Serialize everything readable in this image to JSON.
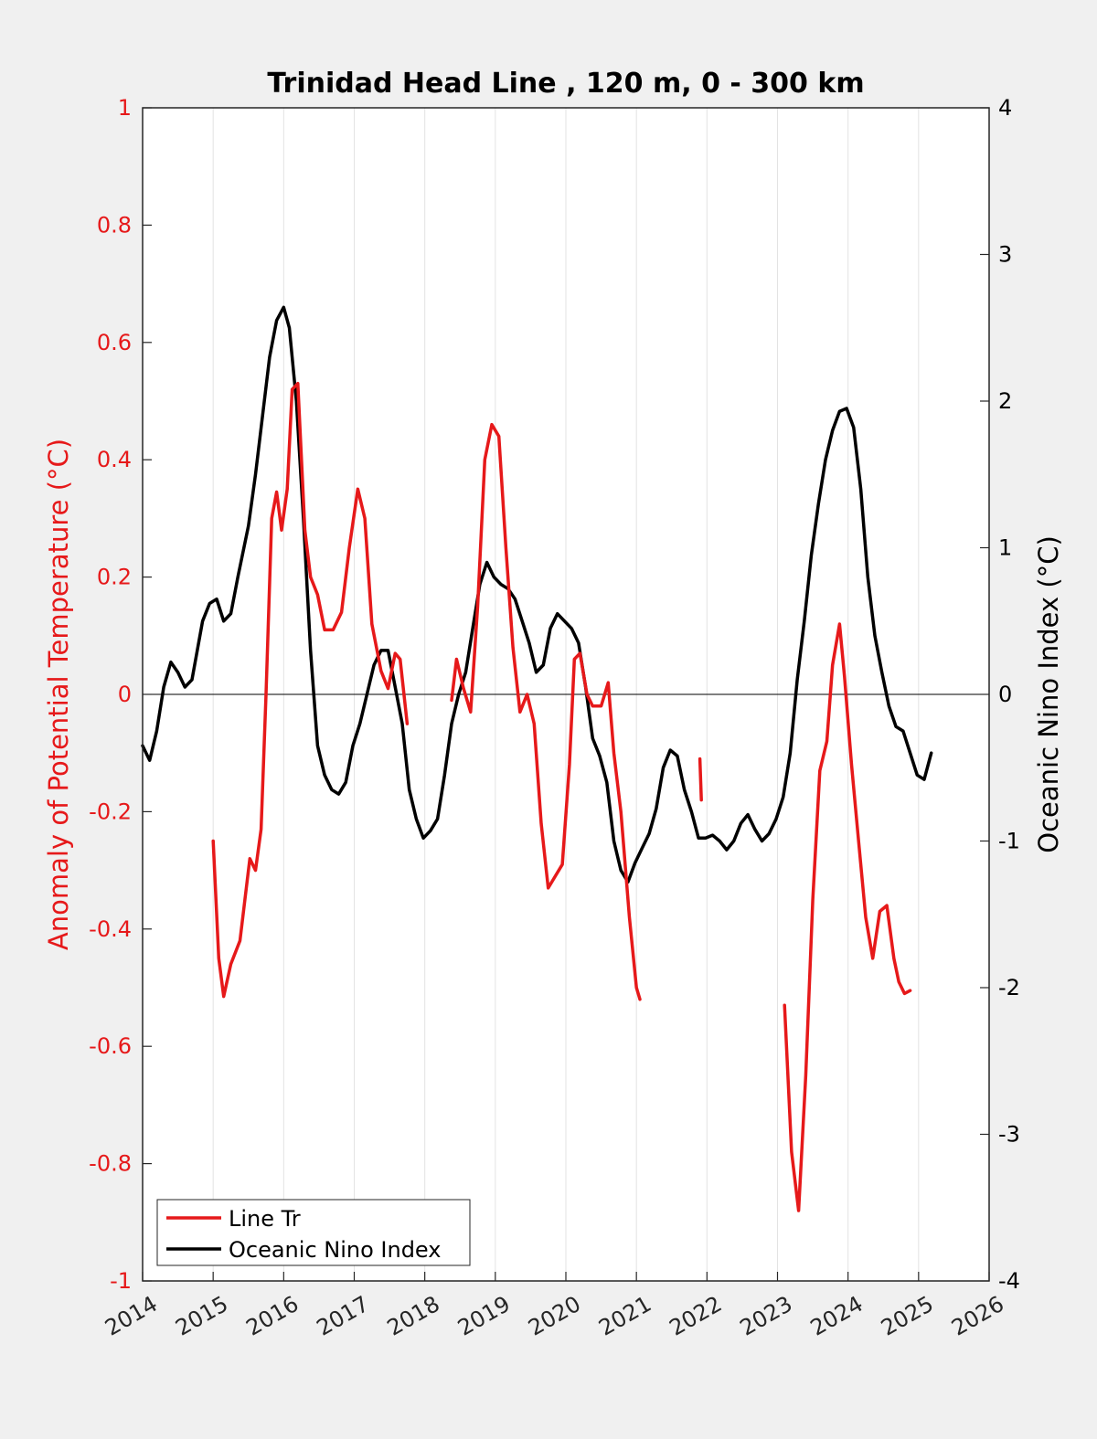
{
  "chart_data": {
    "type": "line",
    "title": "Trinidad Head Line , 120 m, 0 - 300 km",
    "xlim": [
      2014,
      2026
    ],
    "x_ticks": [
      "2014",
      "2015",
      "2016",
      "2017",
      "2018",
      "2019",
      "2020",
      "2021",
      "2022",
      "2023",
      "2024",
      "2025",
      "2026"
    ],
    "y_left": {
      "label": "Anomaly of Potential Temperature (°C)",
      "range": [
        -1,
        1
      ],
      "ticks": [
        "1",
        "0.8",
        "0.6",
        "0.4",
        "0.2",
        "0",
        "-0.2",
        "-0.4",
        "-0.6",
        "-0.8",
        "-1"
      ],
      "color": "#e6191a"
    },
    "y_right": {
      "label": "Oceanic Nino Index (°C)",
      "range": [
        -4,
        4
      ],
      "ticks": [
        "4",
        "3",
        "2",
        "1",
        "0",
        "-1",
        "-2",
        "-3",
        "-4"
      ],
      "color": "#000000"
    },
    "grid": "vertical",
    "zero_line": true,
    "legend": {
      "placement": "bottom-left",
      "entries": [
        "Line Tr",
        "Oceanic Nino Index"
      ]
    },
    "series": [
      {
        "name": "Line Tr",
        "axis": "left",
        "color": "#e6191a",
        "segments": [
          [
            [
              2015.0,
              -0.25
            ],
            [
              2015.08,
              -0.45
            ],
            [
              2015.15,
              -0.515
            ],
            [
              2015.25,
              -0.46
            ],
            [
              2015.38,
              -0.42
            ],
            [
              2015.45,
              -0.35
            ],
            [
              2015.52,
              -0.28
            ],
            [
              2015.6,
              -0.3
            ],
            [
              2015.68,
              -0.23
            ],
            [
              2015.75,
              0.0
            ],
            [
              2015.83,
              0.3
            ],
            [
              2015.9,
              0.345
            ],
            [
              2015.97,
              0.28
            ],
            [
              2016.05,
              0.35
            ],
            [
              2016.12,
              0.52
            ],
            [
              2016.2,
              0.53
            ],
            [
              2016.3,
              0.28
            ],
            [
              2016.38,
              0.2
            ],
            [
              2016.48,
              0.17
            ],
            [
              2016.58,
              0.11
            ],
            [
              2016.7,
              0.11
            ],
            [
              2016.82,
              0.14
            ],
            [
              2016.93,
              0.25
            ],
            [
              2017.05,
              0.35
            ],
            [
              2017.15,
              0.3
            ],
            [
              2017.25,
              0.12
            ],
            [
              2017.38,
              0.04
            ],
            [
              2017.48,
              0.01
            ],
            [
              2017.58,
              0.07
            ],
            [
              2017.65,
              0.06
            ],
            [
              2017.75,
              -0.05
            ]
          ],
          [
            [
              2018.38,
              -0.01
            ],
            [
              2018.45,
              0.06
            ],
            [
              2018.55,
              0.01
            ],
            [
              2018.65,
              -0.03
            ],
            [
              2018.75,
              0.15
            ],
            [
              2018.85,
              0.4
            ],
            [
              2018.95,
              0.46
            ],
            [
              2019.05,
              0.44
            ],
            [
              2019.15,
              0.25
            ],
            [
              2019.25,
              0.08
            ],
            [
              2019.35,
              -0.03
            ],
            [
              2019.45,
              0.0
            ],
            [
              2019.55,
              -0.05
            ],
            [
              2019.65,
              -0.22
            ],
            [
              2019.75,
              -0.33
            ],
            [
              2019.85,
              -0.31
            ],
            [
              2019.95,
              -0.29
            ],
            [
              2020.05,
              -0.12
            ],
            [
              2020.12,
              0.06
            ],
            [
              2020.2,
              0.07
            ],
            [
              2020.3,
              0.0
            ],
            [
              2020.38,
              -0.02
            ],
            [
              2020.5,
              -0.02
            ],
            [
              2020.6,
              0.02
            ],
            [
              2020.68,
              -0.1
            ],
            [
              2020.78,
              -0.2
            ],
            [
              2020.9,
              -0.38
            ],
            [
              2021.0,
              -0.5
            ],
            [
              2021.05,
              -0.52
            ]
          ],
          [
            [
              2021.9,
              -0.11
            ],
            [
              2021.92,
              -0.18
            ]
          ],
          [
            [
              2023.1,
              -0.53
            ],
            [
              2023.2,
              -0.78
            ],
            [
              2023.3,
              -0.88
            ],
            [
              2023.4,
              -0.65
            ],
            [
              2023.5,
              -0.35
            ],
            [
              2023.6,
              -0.13
            ],
            [
              2023.7,
              -0.08
            ],
            [
              2023.78,
              0.05
            ],
            [
              2023.88,
              0.12
            ],
            [
              2023.95,
              0.03
            ],
            [
              2024.05,
              -0.12
            ],
            [
              2024.15,
              -0.25
            ],
            [
              2024.25,
              -0.38
            ],
            [
              2024.35,
              -0.45
            ],
            [
              2024.45,
              -0.37
            ],
            [
              2024.55,
              -0.36
            ],
            [
              2024.65,
              -0.45
            ],
            [
              2024.72,
              -0.49
            ],
            [
              2024.8,
              -0.51
            ],
            [
              2024.88,
              -0.505
            ]
          ]
        ]
      },
      {
        "name": "Oceanic Nino Index",
        "axis": "right",
        "color": "#000000",
        "segments": [
          [
            [
              2014.0,
              -0.35
            ],
            [
              2014.1,
              -0.45
            ],
            [
              2014.2,
              -0.25
            ],
            [
              2014.3,
              0.05
            ],
            [
              2014.4,
              0.22
            ],
            [
              2014.5,
              0.15
            ],
            [
              2014.6,
              0.05
            ],
            [
              2014.7,
              0.1
            ],
            [
              2014.85,
              0.5
            ],
            [
              2014.95,
              0.62
            ],
            [
              2015.05,
              0.65
            ],
            [
              2015.15,
              0.5
            ],
            [
              2015.25,
              0.55
            ],
            [
              2015.35,
              0.8
            ],
            [
              2015.5,
              1.15
            ],
            [
              2015.6,
              1.5
            ],
            [
              2015.7,
              1.9
            ],
            [
              2015.8,
              2.3
            ],
            [
              2015.9,
              2.55
            ],
            [
              2016.0,
              2.64
            ],
            [
              2016.08,
              2.5
            ],
            [
              2016.18,
              2.0
            ],
            [
              2016.28,
              1.2
            ],
            [
              2016.38,
              0.3
            ],
            [
              2016.48,
              -0.35
            ],
            [
              2016.58,
              -0.55
            ],
            [
              2016.68,
              -0.65
            ],
            [
              2016.78,
              -0.68
            ],
            [
              2016.88,
              -0.6
            ],
            [
              2016.98,
              -0.35
            ],
            [
              2017.08,
              -0.2
            ],
            [
              2017.18,
              0.0
            ],
            [
              2017.28,
              0.2
            ],
            [
              2017.38,
              0.3
            ],
            [
              2017.48,
              0.3
            ],
            [
              2017.58,
              0.05
            ],
            [
              2017.68,
              -0.2
            ],
            [
              2017.78,
              -0.65
            ],
            [
              2017.88,
              -0.85
            ],
            [
              2017.98,
              -0.98
            ],
            [
              2018.08,
              -0.93
            ],
            [
              2018.18,
              -0.85
            ],
            [
              2018.28,
              -0.55
            ],
            [
              2018.38,
              -0.2
            ],
            [
              2018.48,
              0.0
            ],
            [
              2018.58,
              0.15
            ],
            [
              2018.68,
              0.45
            ],
            [
              2018.78,
              0.75
            ],
            [
              2018.88,
              0.9
            ],
            [
              2018.98,
              0.8
            ],
            [
              2019.08,
              0.75
            ],
            [
              2019.18,
              0.72
            ],
            [
              2019.28,
              0.65
            ],
            [
              2019.38,
              0.5
            ],
            [
              2019.48,
              0.35
            ],
            [
              2019.58,
              0.15
            ],
            [
              2019.68,
              0.2
            ],
            [
              2019.78,
              0.45
            ],
            [
              2019.88,
              0.55
            ],
            [
              2019.98,
              0.5
            ],
            [
              2020.08,
              0.45
            ],
            [
              2020.18,
              0.35
            ],
            [
              2020.28,
              0.05
            ],
            [
              2020.38,
              -0.3
            ],
            [
              2020.48,
              -0.42
            ],
            [
              2020.58,
              -0.6
            ],
            [
              2020.68,
              -1.0
            ],
            [
              2020.78,
              -1.2
            ],
            [
              2020.88,
              -1.28
            ],
            [
              2020.98,
              -1.15
            ],
            [
              2021.08,
              -1.05
            ],
            [
              2021.18,
              -0.95
            ],
            [
              2021.28,
              -0.78
            ],
            [
              2021.38,
              -0.5
            ],
            [
              2021.48,
              -0.38
            ],
            [
              2021.58,
              -0.42
            ],
            [
              2021.68,
              -0.65
            ],
            [
              2021.78,
              -0.8
            ],
            [
              2021.88,
              -0.98
            ],
            [
              2021.98,
              -0.98
            ],
            [
              2022.08,
              -0.96
            ],
            [
              2022.18,
              -1.0
            ],
            [
              2022.28,
              -1.06
            ],
            [
              2022.38,
              -1.0
            ],
            [
              2022.48,
              -0.88
            ],
            [
              2022.58,
              -0.82
            ],
            [
              2022.68,
              -0.92
            ],
            [
              2022.78,
              -1.0
            ],
            [
              2022.88,
              -0.95
            ],
            [
              2022.98,
              -0.85
            ],
            [
              2023.08,
              -0.7
            ],
            [
              2023.18,
              -0.4
            ],
            [
              2023.28,
              0.1
            ],
            [
              2023.38,
              0.5
            ],
            [
              2023.48,
              0.95
            ],
            [
              2023.58,
              1.3
            ],
            [
              2023.68,
              1.6
            ],
            [
              2023.78,
              1.8
            ],
            [
              2023.88,
              1.93
            ],
            [
              2023.98,
              1.95
            ],
            [
              2024.08,
              1.82
            ],
            [
              2024.18,
              1.4
            ],
            [
              2024.28,
              0.8
            ],
            [
              2024.38,
              0.4
            ],
            [
              2024.48,
              0.15
            ],
            [
              2024.58,
              -0.08
            ],
            [
              2024.68,
              -0.22
            ],
            [
              2024.78,
              -0.25
            ],
            [
              2024.88,
              -0.4
            ],
            [
              2024.98,
              -0.55
            ],
            [
              2025.08,
              -0.58
            ],
            [
              2025.18,
              -0.4
            ]
          ]
        ]
      }
    ]
  }
}
